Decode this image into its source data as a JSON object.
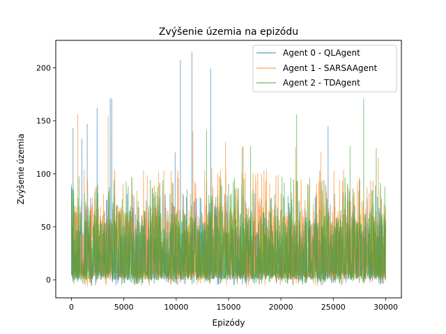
{
  "chart_data": {
    "type": "line",
    "title": "Zvýšenie územia na epizódu",
    "xlabel": "Epizódy",
    "ylabel": "Zvýšenie územia",
    "xlim": [
      -1500,
      31500
    ],
    "ylim": [
      -17,
      226
    ],
    "xticks": [
      0,
      5000,
      10000,
      15000,
      20000,
      25000,
      30000
    ],
    "yticks": [
      0,
      50,
      100,
      150,
      200
    ],
    "legend_position": "top-right",
    "grid": false,
    "n_episodes": 30000,
    "series": [
      {
        "name": "Agent 0 - QLAgent",
        "color": "#1f77b4",
        "alpha": 0.6,
        "typical_range": [
          0,
          55
        ],
        "min": -5,
        "peaks": [
          [
            0,
            87
          ],
          [
            150,
            143
          ],
          [
            1000,
            133
          ],
          [
            1500,
            147
          ],
          [
            2450,
            162
          ],
          [
            3700,
            171
          ],
          [
            3850,
            171
          ],
          [
            9900,
            120
          ],
          [
            10400,
            207
          ],
          [
            11500,
            215
          ],
          [
            13300,
            199
          ],
          [
            24500,
            145
          ]
        ]
      },
      {
        "name": "Agent 1 - SARSAAgent",
        "color": "#ff7f0e",
        "alpha": 0.6,
        "typical_range": [
          0,
          70
        ],
        "min": -6,
        "peaks": [
          [
            600,
            156
          ],
          [
            3500,
            155
          ],
          [
            11600,
            140
          ],
          [
            14700,
            130
          ],
          [
            16400,
            126
          ],
          [
            21400,
            125
          ],
          [
            23800,
            120
          ],
          [
            29300,
            115
          ]
        ]
      },
      {
        "name": "Agent 2 - TDAgent",
        "color": "#2ca02c",
        "alpha": 0.6,
        "typical_range": [
          0,
          65
        ],
        "min": -4,
        "peaks": [
          [
            12900,
            141
          ],
          [
            16300,
            125
          ],
          [
            17100,
            126
          ],
          [
            21500,
            156
          ],
          [
            26600,
            126
          ],
          [
            27900,
            171
          ],
          [
            29100,
            124
          ]
        ]
      }
    ]
  }
}
